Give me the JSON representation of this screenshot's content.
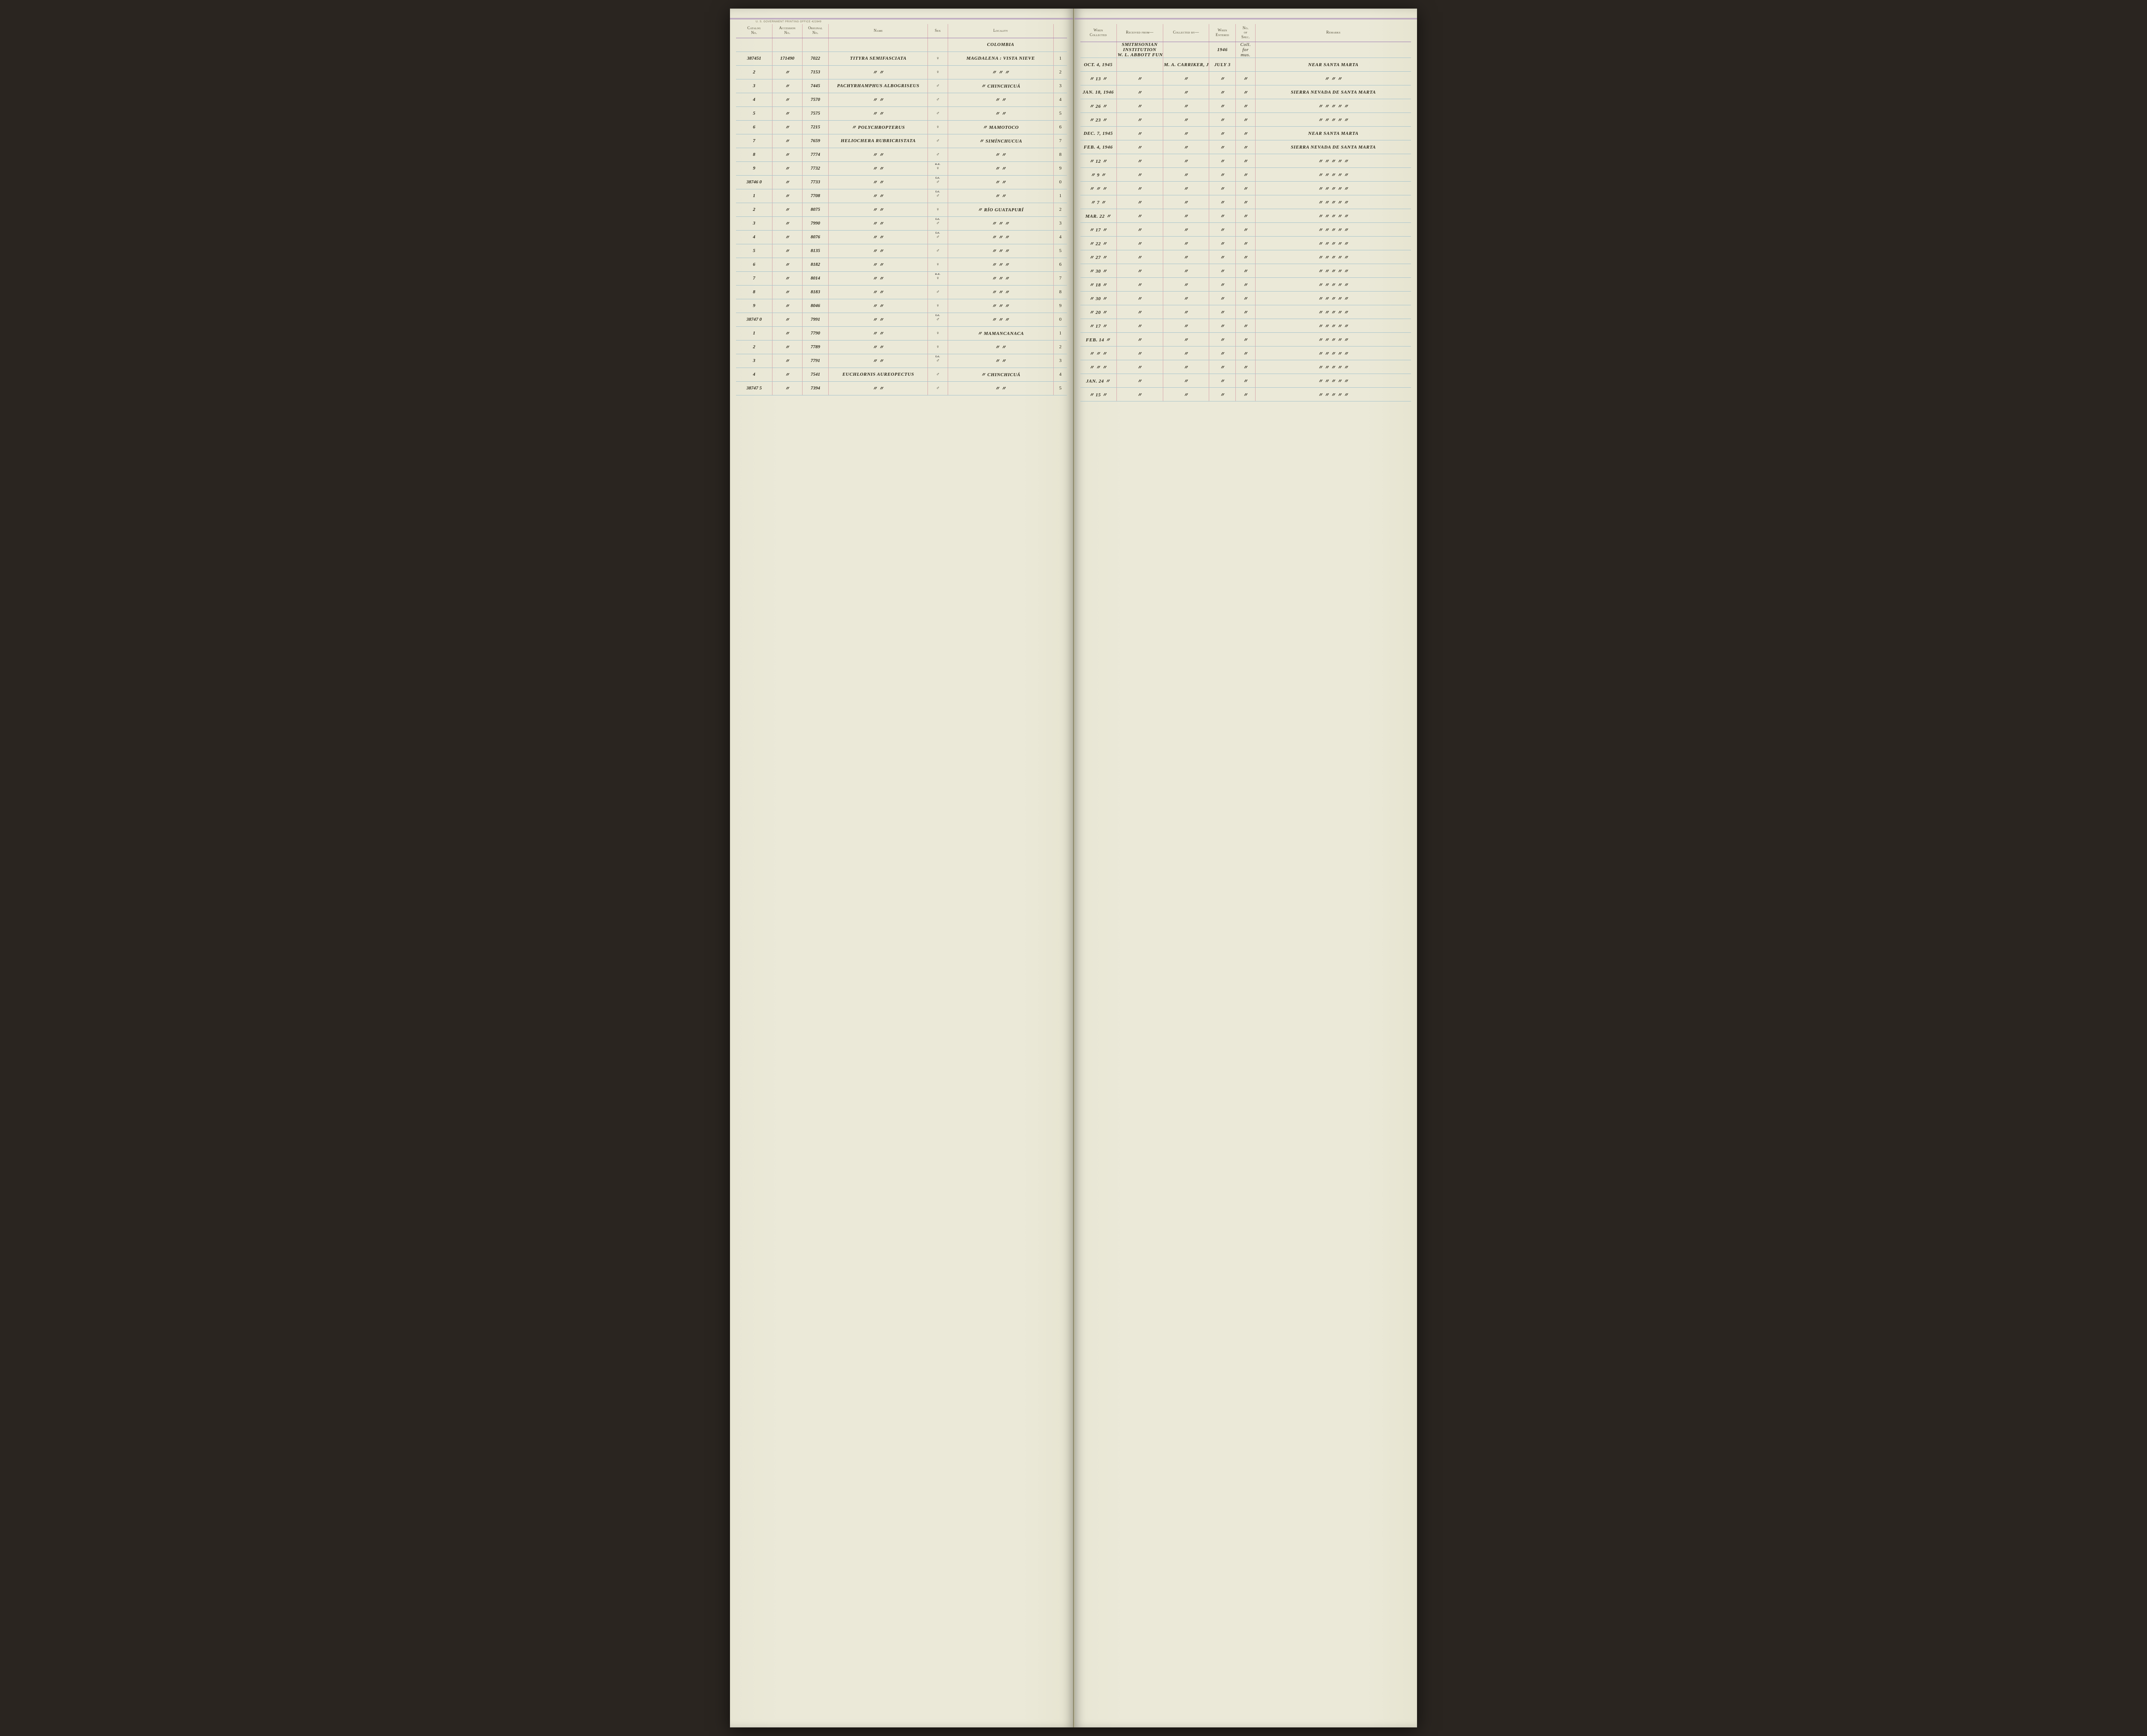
{
  "print_mark": "U. S. GOVERNMENT PRINTING OFFICE    422849",
  "headers": {
    "left": [
      "Catalog\nNo.",
      "Accession\nNo.",
      "Original\nNo.",
      "Name",
      "Sex",
      "Locality",
      ""
    ],
    "right": [
      "When\nCollected",
      "Received from—",
      "Collected by—",
      "When\nEntered",
      "No.\nof\nSpec.",
      "Remarks"
    ]
  },
  "context_row": {
    "locality": "COLOMBIA",
    "received": "SMITHSONIAN\nINSTITUTION\nW. L. ABBOTT FUND",
    "entered": "1946",
    "spec": "Coll.\nfor\nmus."
  },
  "ditto": "〃",
  "rows": [
    {
      "n": "1",
      "catalog": "387451",
      "accession": "171490",
      "original": "7022",
      "name": "TITYRA SEMIFASCIATA",
      "sex": "♀",
      "sex_annot": "",
      "locality": "MAGDALENA : VISTA NIEVE",
      "when": "OCT. 4, 1945",
      "recv": "",
      "coll": "M. A. CARRIKER, JR.",
      "entered": "JULY 3",
      "spec": "",
      "remarks": "NEAR SANTA MARTA"
    },
    {
      "n": "2",
      "catalog": "2",
      "accession": "〃",
      "original": "7153",
      "name": "〃           〃",
      "sex": "♀",
      "sex_annot": "",
      "locality": "〃           〃           〃",
      "when": "〃 13 〃",
      "recv": "〃",
      "coll": "〃",
      "entered": "〃",
      "spec": "〃",
      "remarks": "〃      〃      〃"
    },
    {
      "n": "3",
      "catalog": "3",
      "accession": "〃",
      "original": "7445",
      "name": "PACHYRHAMPHUS ALBOGRISEUS",
      "sex": "♂",
      "sex_annot": "",
      "locality": "〃           CHINCHICUÁ",
      "when": "JAN. 18, 1946",
      "recv": "〃",
      "coll": "〃",
      "entered": "〃",
      "spec": "〃",
      "remarks": "SIERRA NEVADA DE SANTA MARTA"
    },
    {
      "n": "4",
      "catalog": "4",
      "accession": "〃",
      "original": "7570",
      "name": "〃           〃",
      "sex": "♂",
      "sex_annot": "",
      "locality": "〃           〃",
      "when": "〃 26 〃",
      "recv": "〃",
      "coll": "〃",
      "entered": "〃",
      "spec": "〃",
      "remarks": "〃    〃    〃    〃    〃"
    },
    {
      "n": "5",
      "catalog": "5",
      "accession": "〃",
      "original": "7575",
      "name": "〃           〃",
      "sex": "♂",
      "sex_annot": "",
      "locality": "〃           〃",
      "when": "〃 23 〃",
      "recv": "〃",
      "coll": "〃",
      "entered": "〃",
      "spec": "〃",
      "remarks": "〃    〃    〃    〃    〃"
    },
    {
      "n": "6",
      "catalog": "6",
      "accession": "〃",
      "original": "7215",
      "name": "〃   POLYCHROPTERUS",
      "sex": "♀",
      "sex_annot": "",
      "locality": "〃      MAMOTOCO",
      "when": "DEC. 7, 1945",
      "recv": "〃",
      "coll": "〃",
      "entered": "〃",
      "spec": "〃",
      "remarks": "NEAR SANTA MARTA"
    },
    {
      "n": "7",
      "catalog": "7",
      "accession": "〃",
      "original": "7659",
      "name": "HELIOCHERA RUBRICRISTATA",
      "sex": "♂",
      "sex_annot": "",
      "locality": "〃      SIMÍNCHUCUA",
      "when": "FEB. 4, 1946",
      "recv": "〃",
      "coll": "〃",
      "entered": "〃",
      "spec": "〃",
      "remarks": "SIERRA NEVADA DE SANTA MARTA"
    },
    {
      "n": "8",
      "catalog": "8",
      "accession": "〃",
      "original": "7774",
      "name": "〃           〃",
      "sex": "♂",
      "sex_annot": "",
      "locality": "〃           〃",
      "when": "〃 12 〃",
      "recv": "〃",
      "coll": "〃",
      "entered": "〃",
      "spec": "〃",
      "remarks": "〃    〃    〃    〃    〃"
    },
    {
      "n": "9",
      "catalog": "9",
      "accession": "〃",
      "original": "7732",
      "name": "〃           〃",
      "sex": "♀",
      "sex_annot": "o.e.",
      "locality": "〃           〃",
      "when": "〃 9 〃",
      "recv": "〃",
      "coll": "〃",
      "entered": "〃",
      "spec": "〃",
      "remarks": "〃    〃    〃    〃    〃"
    },
    {
      "n": "0",
      "catalog": "38746 0",
      "accession": "〃",
      "original": "7733",
      "name": "〃           〃",
      "sex": "♂",
      "sex_annot": "t.e.",
      "locality": "〃           〃",
      "when": "〃  〃  〃",
      "recv": "〃",
      "coll": "〃",
      "entered": "〃",
      "spec": "〃",
      "remarks": "〃    〃    〃    〃    〃"
    },
    {
      "n": "1",
      "catalog": "1",
      "accession": "〃",
      "original": "7708",
      "name": "〃           〃",
      "sex": "♂",
      "sex_annot": "t.e.",
      "locality": "〃           〃",
      "when": "〃 7 〃",
      "recv": "〃",
      "coll": "〃",
      "entered": "〃",
      "spec": "〃",
      "remarks": "〃    〃    〃    〃    〃"
    },
    {
      "n": "2",
      "catalog": "2",
      "accession": "〃",
      "original": "8075",
      "name": "〃           〃",
      "sex": "♀",
      "sex_annot": "",
      "locality": "〃      RÍO GUATAPURÍ",
      "when": "MAR. 22 〃",
      "recv": "〃",
      "coll": "〃",
      "entered": "〃",
      "spec": "〃",
      "remarks": "〃    〃    〃    〃    〃"
    },
    {
      "n": "3",
      "catalog": "3",
      "accession": "〃",
      "original": "7990",
      "name": "〃           〃",
      "sex": "♂",
      "sex_annot": "t.e.",
      "locality": "〃      〃      〃",
      "when": "〃 17 〃",
      "recv": "〃",
      "coll": "〃",
      "entered": "〃",
      "spec": "〃",
      "remarks": "〃    〃    〃    〃    〃"
    },
    {
      "n": "4",
      "catalog": "4",
      "accession": "〃",
      "original": "8076",
      "name": "〃           〃",
      "sex": "♂",
      "sex_annot": "t.e.",
      "locality": "〃      〃      〃",
      "when": "〃 22 〃",
      "recv": "〃",
      "coll": "〃",
      "entered": "〃",
      "spec": "〃",
      "remarks": "〃    〃    〃    〃    〃"
    },
    {
      "n": "5",
      "catalog": "5",
      "accession": "〃",
      "original": "8135",
      "name": "〃           〃",
      "sex": "♂",
      "sex_annot": "",
      "locality": "〃      〃      〃",
      "when": "〃 27 〃",
      "recv": "〃",
      "coll": "〃",
      "entered": "〃",
      "spec": "〃",
      "remarks": "〃    〃    〃    〃    〃"
    },
    {
      "n": "6",
      "catalog": "6",
      "accession": "〃",
      "original": "8182",
      "name": "〃           〃",
      "sex": "♀",
      "sex_annot": "",
      "locality": "〃      〃      〃",
      "when": "〃 30 〃",
      "recv": "〃",
      "coll": "〃",
      "entered": "〃",
      "spec": "〃",
      "remarks": "〃    〃    〃    〃    〃"
    },
    {
      "n": "7",
      "catalog": "7",
      "accession": "〃",
      "original": "8014",
      "name": "〃           〃",
      "sex": "♀",
      "sex_annot": "o.e.",
      "locality": "〃      〃      〃",
      "when": "〃 18 〃",
      "recv": "〃",
      "coll": "〃",
      "entered": "〃",
      "spec": "〃",
      "remarks": "〃    〃    〃    〃    〃"
    },
    {
      "n": "8",
      "catalog": "8",
      "accession": "〃",
      "original": "8183",
      "name": "〃           〃",
      "sex": "♂",
      "sex_annot": "",
      "locality": "〃      〃      〃",
      "when": "〃 30 〃",
      "recv": "〃",
      "coll": "〃",
      "entered": "〃",
      "spec": "〃",
      "remarks": "〃    〃    〃    〃    〃"
    },
    {
      "n": "9",
      "catalog": "9",
      "accession": "〃",
      "original": "8046",
      "name": "〃           〃",
      "sex": "♀",
      "sex_annot": "",
      "locality": "〃      〃      〃",
      "when": "〃 20 〃",
      "recv": "〃",
      "coll": "〃",
      "entered": "〃",
      "spec": "〃",
      "remarks": "〃    〃    〃    〃    〃"
    },
    {
      "n": "0",
      "catalog": "38747 0",
      "accession": "〃",
      "original": "7991",
      "name": "〃           〃",
      "sex": "♂",
      "sex_annot": "t.e.",
      "locality": "〃      〃      〃",
      "when": "〃 17 〃",
      "recv": "〃",
      "coll": "〃",
      "entered": "〃",
      "spec": "〃",
      "remarks": "〃    〃    〃    〃    〃"
    },
    {
      "n": "1",
      "catalog": "1",
      "accession": "〃",
      "original": "7790",
      "name": "〃           〃",
      "sex": "♀",
      "sex_annot": "",
      "locality": "〃      MAMANCANACA",
      "when": "FEB. 14 〃",
      "recv": "〃",
      "coll": "〃",
      "entered": "〃",
      "spec": "〃",
      "remarks": "〃    〃    〃    〃    〃"
    },
    {
      "n": "2",
      "catalog": "2",
      "accession": "〃",
      "original": "7789",
      "name": "〃           〃",
      "sex": "♀",
      "sex_annot": "",
      "locality": "〃           〃",
      "when": "〃  〃  〃",
      "recv": "〃",
      "coll": "〃",
      "entered": "〃",
      "spec": "〃",
      "remarks": "〃    〃    〃    〃    〃"
    },
    {
      "n": "3",
      "catalog": "3",
      "accession": "〃",
      "original": "7791",
      "name": "〃           〃",
      "sex": "♂",
      "sex_annot": "t.e.",
      "locality": "〃           〃",
      "when": "〃  〃  〃",
      "recv": "〃",
      "coll": "〃",
      "entered": "〃",
      "spec": "〃",
      "remarks": "〃    〃    〃    〃    〃"
    },
    {
      "n": "4",
      "catalog": "4",
      "accession": "〃",
      "original": "7541",
      "name": "EUCHLORNIS AUREOPECTUS",
      "sex": "♂",
      "sex_annot": "",
      "locality": "〃      CHINCHICUÁ",
      "when": "JAN. 24 〃",
      "recv": "〃",
      "coll": "〃",
      "entered": "〃",
      "spec": "〃",
      "remarks": "〃    〃    〃    〃    〃"
    },
    {
      "n": "5",
      "catalog": "38747 5",
      "accession": "〃",
      "original": "7394",
      "name": "〃           〃",
      "sex": "♂",
      "sex_annot": "",
      "locality": "〃           〃",
      "when": "〃 15 〃",
      "recv": "〃",
      "coll": "〃",
      "entered": "〃",
      "spec": "〃",
      "remarks": "〃    〃    〃    〃    〃"
    }
  ]
}
